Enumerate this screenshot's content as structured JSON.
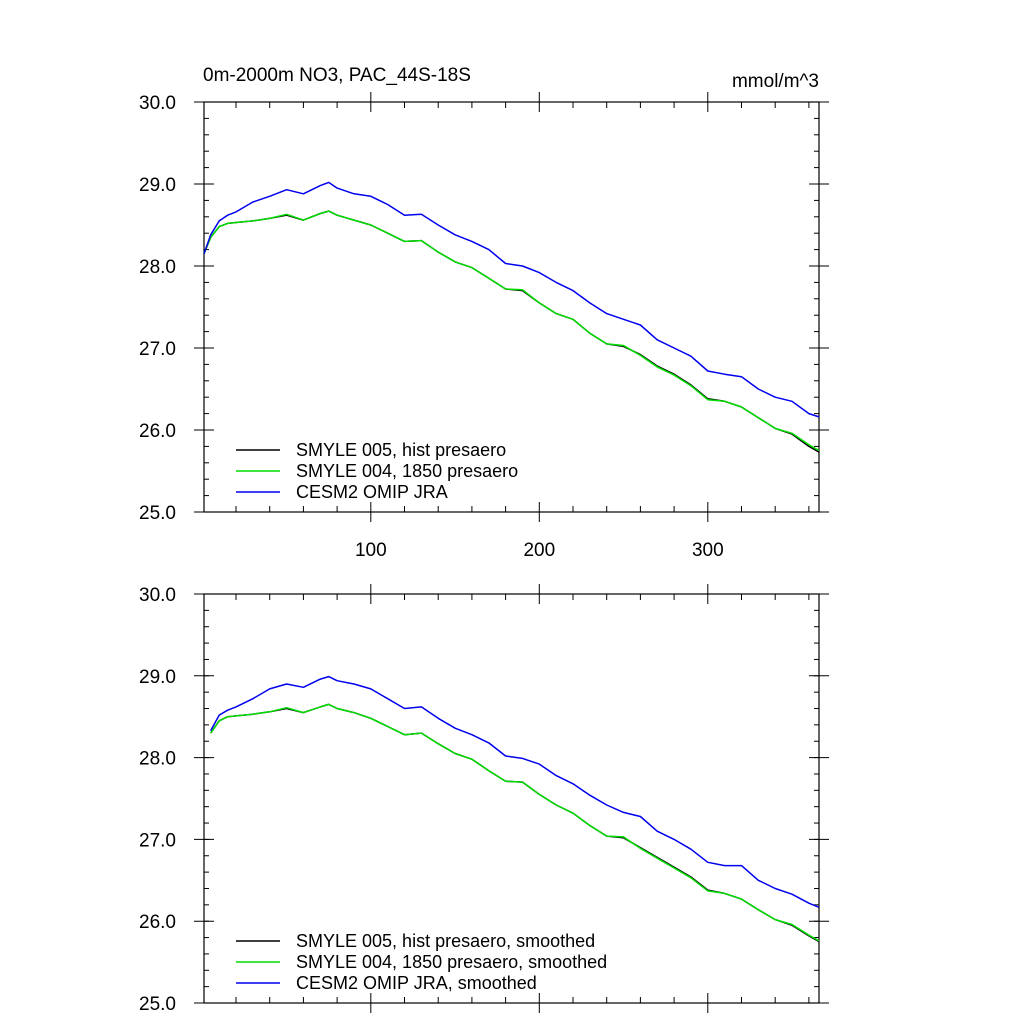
{
  "title_left": "0m-2000m NO3, PAC_44S-18S",
  "title_right": "mmol/m^3",
  "chart_data": [
    {
      "type": "line",
      "panel": "top",
      "xlim": [
        1,
        366
      ],
      "ylim": [
        25.0,
        30.0
      ],
      "x_ticks": [
        100,
        200,
        300
      ],
      "x_tick_labels": [
        "100",
        "200",
        "300"
      ],
      "y_ticks": [
        25.0,
        26.0,
        27.0,
        28.0,
        29.0,
        30.0
      ],
      "y_tick_labels": [
        "25.0",
        "26.0",
        "27.0",
        "28.0",
        "29.0",
        "30.0"
      ],
      "grid": false,
      "legend_position": "bottom-left",
      "x": [
        1,
        5,
        10,
        15,
        20,
        30,
        40,
        50,
        60,
        70,
        75,
        80,
        90,
        100,
        110,
        120,
        130,
        140,
        150,
        160,
        170,
        180,
        190,
        200,
        210,
        220,
        230,
        240,
        250,
        260,
        270,
        280,
        290,
        300,
        310,
        320,
        330,
        340,
        350,
        360,
        366
      ],
      "series": [
        {
          "name": "SMYLE 005, hist presaero",
          "color": "#000000",
          "values": [
            28.15,
            28.35,
            28.48,
            28.52,
            28.53,
            28.55,
            28.58,
            28.62,
            28.56,
            28.64,
            28.67,
            28.62,
            28.56,
            28.5,
            28.4,
            28.3,
            28.31,
            28.17,
            28.05,
            27.98,
            27.85,
            27.72,
            27.7,
            27.55,
            27.42,
            27.35,
            27.18,
            27.05,
            27.02,
            26.92,
            26.78,
            26.68,
            26.55,
            26.38,
            26.35,
            26.28,
            26.15,
            26.02,
            25.95,
            25.8,
            25.73
          ]
        },
        {
          "name": "SMYLE 004, 1850 presaero",
          "color": "#00dd00",
          "values": [
            28.15,
            28.35,
            28.48,
            28.52,
            28.53,
            28.55,
            28.58,
            28.63,
            28.56,
            28.64,
            28.67,
            28.62,
            28.56,
            28.5,
            28.4,
            28.3,
            28.31,
            28.17,
            28.05,
            27.98,
            27.85,
            27.72,
            27.71,
            27.55,
            27.42,
            27.35,
            27.18,
            27.05,
            27.03,
            26.91,
            26.77,
            26.67,
            26.54,
            26.37,
            26.35,
            26.28,
            26.15,
            26.02,
            25.96,
            25.82,
            25.75
          ]
        },
        {
          "name": "CESM2 OMIP JRA",
          "color": "#0000ee",
          "values": [
            28.15,
            28.38,
            28.55,
            28.62,
            28.66,
            28.78,
            28.85,
            28.93,
            28.88,
            28.98,
            29.02,
            28.95,
            28.88,
            28.85,
            28.75,
            28.62,
            28.63,
            28.5,
            28.38,
            28.3,
            28.2,
            28.03,
            28.0,
            27.92,
            27.8,
            27.7,
            27.55,
            27.42,
            27.35,
            27.28,
            27.1,
            27.0,
            26.9,
            26.72,
            26.68,
            26.65,
            26.5,
            26.4,
            26.35,
            26.2,
            26.16
          ]
        }
      ]
    },
    {
      "type": "line",
      "panel": "bottom",
      "xlim": [
        1,
        366
      ],
      "ylim": [
        25.0,
        30.0
      ],
      "x_ticks": [
        100,
        200,
        300
      ],
      "x_tick_labels": [],
      "y_ticks": [
        25.0,
        26.0,
        27.0,
        28.0,
        29.0,
        30.0
      ],
      "y_tick_labels": [
        "25.0",
        "26.0",
        "27.0",
        "28.0",
        "29.0",
        "30.0"
      ],
      "grid": false,
      "legend_position": "bottom-left",
      "x": [
        5,
        10,
        15,
        20,
        30,
        40,
        50,
        60,
        70,
        75,
        80,
        90,
        100,
        110,
        120,
        130,
        140,
        150,
        160,
        170,
        180,
        190,
        200,
        210,
        220,
        230,
        240,
        250,
        260,
        270,
        280,
        290,
        300,
        310,
        320,
        330,
        340,
        350,
        360,
        366
      ],
      "series": [
        {
          "name": "SMYLE 005, hist presaero, smoothed",
          "color": "#000000",
          "values": [
            28.3,
            28.45,
            28.5,
            28.51,
            28.53,
            28.56,
            28.6,
            28.55,
            28.62,
            28.65,
            28.6,
            28.55,
            28.48,
            28.38,
            28.28,
            28.3,
            28.17,
            28.05,
            27.98,
            27.84,
            27.71,
            27.7,
            27.55,
            27.42,
            27.32,
            27.17,
            27.04,
            27.02,
            26.9,
            26.78,
            26.66,
            26.54,
            26.38,
            26.34,
            26.27,
            26.14,
            26.02,
            25.95,
            25.82,
            25.75
          ]
        },
        {
          "name": "SMYLE 004, 1850 presaero, smoothed",
          "color": "#00dd00",
          "values": [
            28.3,
            28.45,
            28.5,
            28.51,
            28.53,
            28.56,
            28.61,
            28.55,
            28.62,
            28.65,
            28.6,
            28.55,
            28.48,
            28.38,
            28.28,
            28.3,
            28.17,
            28.05,
            27.98,
            27.84,
            27.71,
            27.7,
            27.55,
            27.42,
            27.32,
            27.17,
            27.04,
            27.03,
            26.89,
            26.77,
            26.65,
            26.53,
            26.37,
            26.34,
            26.27,
            26.14,
            26.02,
            25.96,
            25.83,
            25.76
          ]
        },
        {
          "name": "CESM2 OMIP JRA, smoothed",
          "color": "#0000ee",
          "values": [
            28.33,
            28.52,
            28.58,
            28.62,
            28.72,
            28.84,
            28.9,
            28.86,
            28.96,
            28.99,
            28.94,
            28.9,
            28.84,
            28.72,
            28.6,
            28.62,
            28.48,
            28.36,
            28.28,
            28.18,
            28.02,
            27.99,
            27.92,
            27.78,
            27.68,
            27.54,
            27.42,
            27.33,
            27.28,
            27.1,
            27.0,
            26.88,
            26.72,
            26.68,
            26.68,
            26.5,
            26.4,
            26.33,
            26.22,
            26.17
          ]
        }
      ]
    }
  ]
}
